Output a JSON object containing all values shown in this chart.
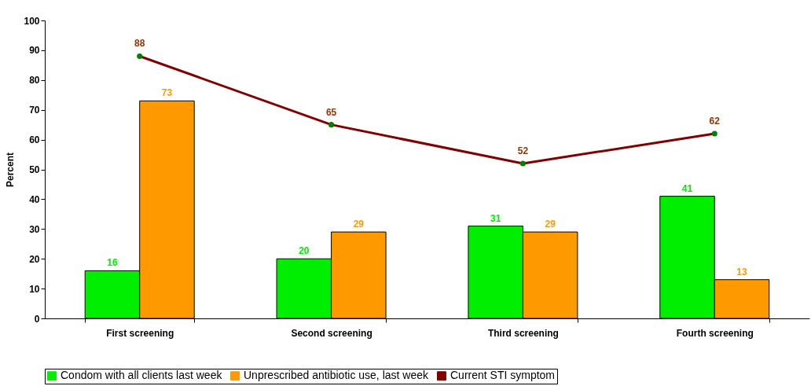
{
  "chart_data": {
    "type": "bar",
    "ylabel": "Percent",
    "categories": [
      "First screening",
      "Second screening",
      "Third screening",
      "Fourth screening"
    ],
    "series": [
      {
        "name": "Condom with all clients last week",
        "color": "#00ee00",
        "values": [
          16,
          20,
          31,
          41
        ]
      },
      {
        "name": "Unprescribed antibiotic use, last week",
        "color": "#ff9900",
        "values": [
          73,
          29,
          29,
          13
        ]
      },
      {
        "name": "Current STI symptom",
        "type": "line",
        "color": "#800000",
        "marker": "circle",
        "values": [
          88,
          65,
          52,
          62
        ]
      }
    ],
    "ylim": [
      0,
      100
    ],
    "yticks": [
      0,
      10,
      20,
      30,
      40,
      50,
      60,
      70,
      80,
      90,
      100
    ],
    "grid": false,
    "legend": "bottom",
    "data_labels": true
  }
}
